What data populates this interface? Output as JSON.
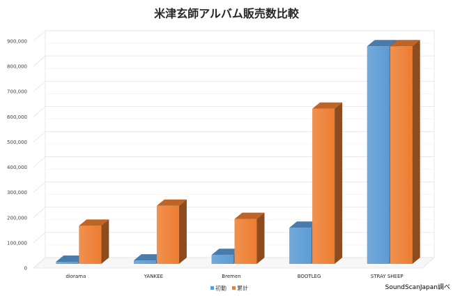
{
  "chart_data": {
    "type": "bar",
    "title": "米津玄師アルバム販売数比較",
    "categories": [
      "diorama",
      "YANKEE",
      "Bremen",
      "BOOTLEG",
      "STRAY SHEEP"
    ],
    "series": [
      {
        "name": "初動",
        "color": "#5b9bd5",
        "values": [
          25000,
          30000,
          52000,
          160000,
          880000
        ]
      },
      {
        "name": "累計",
        "color": "#ed7d31",
        "values": [
          168000,
          247000,
          195000,
          632000,
          880000
        ]
      }
    ],
    "ylim": [
      0,
      900000
    ],
    "yticks": [
      "0",
      "100,000",
      "200,000",
      "300,000",
      "400,000",
      "500,000",
      "600,000",
      "700,000",
      "800,000",
      "900,000"
    ],
    "grid": true,
    "legend": "bottom"
  },
  "source_note": "SoundScanJapan調べ"
}
